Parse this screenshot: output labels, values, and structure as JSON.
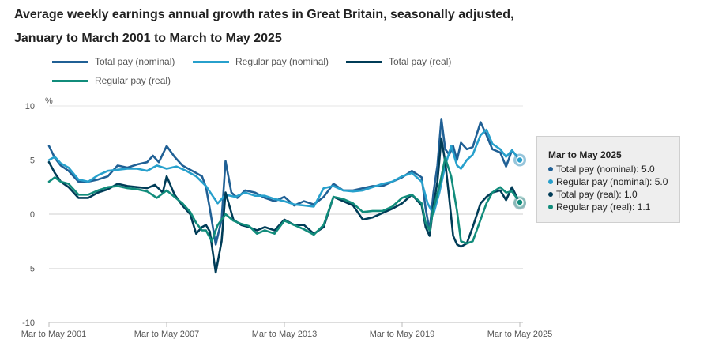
{
  "chart_data": {
    "type": "line",
    "title": "Average weekly earnings annual growth rates in Great Britain, seasonally adjusted, January to March 2001 to March to May 2025",
    "ylabel": "%",
    "xlabel": "",
    "ylim": [
      -10,
      10
    ],
    "yticks": [
      "10",
      "5",
      "0",
      "-5",
      "-10"
    ],
    "ytick_values": [
      10,
      5,
      0,
      -5,
      -10
    ],
    "x_range": [
      2001.0,
      2025.0
    ],
    "xtick_labels": [
      "Mar to May 2001",
      "Mar to May 2007",
      "Mar to May 2013",
      "Mar to May 2019",
      "Mar to May 2025"
    ],
    "xtick_values": [
      2001.0,
      2007.0,
      2013.0,
      2019.0,
      2025.0
    ],
    "legend_position": "top",
    "series": [
      {
        "name": "Total pay (nominal)",
        "color": "#206095",
        "x": [
          2001.0,
          2001.3,
          2001.6,
          2002.0,
          2002.5,
          2003.0,
          2003.5,
          2004.0,
          2004.5,
          2005.0,
          2005.5,
          2006.0,
          2006.3,
          2006.6,
          2007.0,
          2007.4,
          2007.8,
          2008.1,
          2008.5,
          2008.8,
          2009.0,
          2009.2,
          2009.5,
          2009.8,
          2010.0,
          2010.3,
          2010.6,
          2011.0,
          2011.5,
          2012.0,
          2012.5,
          2013.0,
          2013.5,
          2014.0,
          2014.5,
          2015.0,
          2015.5,
          2016.0,
          2016.5,
          2017.0,
          2017.5,
          2018.0,
          2018.5,
          2019.0,
          2019.5,
          2020.0,
          2020.2,
          2020.4,
          2020.6,
          2020.8,
          2021.0,
          2021.2,
          2021.4,
          2021.6,
          2021.8,
          2022.0,
          2022.3,
          2022.6,
          2023.0,
          2023.3,
          2023.6,
          2024.0,
          2024.3,
          2024.6,
          2025.0
        ],
        "y": [
          6.3,
          5.2,
          4.5,
          4.0,
          3.0,
          3.0,
          3.2,
          3.5,
          4.5,
          4.3,
          4.6,
          4.8,
          5.4,
          4.8,
          6.3,
          5.3,
          4.5,
          4.2,
          3.8,
          3.5,
          2.5,
          0.5,
          -2.8,
          -0.5,
          4.9,
          2.0,
          1.5,
          2.2,
          2.0,
          1.5,
          1.2,
          1.6,
          0.8,
          1.2,
          0.9,
          1.6,
          2.8,
          2.2,
          2.2,
          2.4,
          2.6,
          2.6,
          3.0,
          3.4,
          4.0,
          3.4,
          0.5,
          -1.5,
          2.0,
          4.5,
          8.8,
          6.0,
          5.5,
          6.3,
          5.0,
          6.6,
          6.0,
          6.2,
          8.5,
          7.3,
          6.0,
          5.7,
          4.4,
          5.9,
          5.0
        ]
      },
      {
        "name": "Regular pay (nominal)",
        "color": "#27A0CC",
        "x": [
          2001.0,
          2001.3,
          2001.6,
          2002.0,
          2002.5,
          2003.0,
          2003.5,
          2004.0,
          2004.5,
          2005.0,
          2005.5,
          2006.0,
          2006.5,
          2007.0,
          2007.5,
          2008.0,
          2008.5,
          2009.0,
          2009.3,
          2009.6,
          2010.0,
          2010.5,
          2011.0,
          2011.5,
          2012.0,
          2012.5,
          2013.0,
          2013.5,
          2014.0,
          2014.5,
          2015.0,
          2015.5,
          2016.0,
          2016.5,
          2017.0,
          2017.5,
          2018.0,
          2018.5,
          2019.0,
          2019.5,
          2020.0,
          2020.3,
          2020.6,
          2020.9,
          2021.2,
          2021.5,
          2021.8,
          2022.0,
          2022.3,
          2022.6,
          2023.0,
          2023.3,
          2023.6,
          2024.0,
          2024.3,
          2024.6,
          2025.0
        ],
        "y": [
          5.0,
          5.3,
          4.7,
          4.3,
          3.2,
          3.0,
          3.6,
          4.0,
          4.1,
          4.2,
          4.2,
          4.0,
          4.5,
          4.2,
          4.4,
          4.0,
          3.5,
          2.6,
          1.8,
          1.0,
          1.8,
          1.6,
          2.0,
          1.7,
          1.7,
          1.4,
          1.2,
          0.9,
          0.8,
          0.7,
          2.4,
          2.6,
          2.2,
          2.1,
          2.2,
          2.5,
          2.8,
          3.0,
          3.5,
          3.8,
          3.0,
          1.0,
          0.0,
          2.0,
          4.5,
          6.3,
          4.5,
          4.2,
          5.0,
          5.5,
          7.3,
          7.8,
          6.5,
          6.0,
          5.3,
          5.9,
          5.0
        ]
      },
      {
        "name": "Total pay (real)",
        "color": "#003C57",
        "x": [
          2001.0,
          2001.3,
          2001.6,
          2002.0,
          2002.5,
          2003.0,
          2003.5,
          2004.0,
          2004.5,
          2005.0,
          2005.5,
          2006.0,
          2006.4,
          2006.8,
          2007.0,
          2007.4,
          2007.8,
          2008.2,
          2008.5,
          2008.8,
          2009.0,
          2009.2,
          2009.5,
          2009.8,
          2010.0,
          2010.4,
          2010.8,
          2011.2,
          2011.6,
          2012.0,
          2012.5,
          2013.0,
          2013.5,
          2014.0,
          2014.5,
          2015.0,
          2015.5,
          2016.0,
          2016.5,
          2017.0,
          2017.5,
          2018.0,
          2018.5,
          2019.0,
          2019.5,
          2020.0,
          2020.2,
          2020.4,
          2020.6,
          2020.8,
          2021.0,
          2021.2,
          2021.4,
          2021.6,
          2021.8,
          2022.0,
          2022.3,
          2022.6,
          2023.0,
          2023.3,
          2023.6,
          2024.0,
          2024.3,
          2024.6,
          2025.0
        ],
        "y": [
          4.8,
          3.8,
          3.0,
          2.5,
          1.5,
          1.5,
          2.0,
          2.3,
          2.8,
          2.6,
          2.5,
          2.4,
          2.7,
          2.0,
          3.5,
          1.8,
          0.8,
          0.0,
          -1.8,
          -1.2,
          -1.0,
          -1.6,
          -5.4,
          -2.5,
          2.0,
          -0.5,
          -1.0,
          -1.2,
          -1.5,
          -1.2,
          -1.5,
          -0.5,
          -1.0,
          -1.0,
          -1.8,
          -1.2,
          1.6,
          1.2,
          0.8,
          -0.5,
          -0.3,
          0.1,
          0.5,
          1.0,
          1.8,
          0.8,
          -1.2,
          -2.0,
          0.8,
          3.0,
          7.0,
          4.8,
          1.5,
          -2.0,
          -2.8,
          -3.0,
          -2.7,
          -1.2,
          1.0,
          1.6,
          2.0,
          2.2,
          1.3,
          2.5,
          1.0
        ]
      },
      {
        "name": "Regular pay (real)",
        "color": "#118C7B",
        "x": [
          2001.0,
          2001.3,
          2001.6,
          2002.0,
          2002.5,
          2003.0,
          2003.5,
          2004.0,
          2004.5,
          2005.0,
          2005.5,
          2006.0,
          2006.5,
          2007.0,
          2007.4,
          2007.8,
          2008.2,
          2008.5,
          2008.8,
          2009.0,
          2009.3,
          2009.6,
          2010.0,
          2010.4,
          2010.8,
          2011.2,
          2011.6,
          2012.0,
          2012.5,
          2013.0,
          2013.5,
          2014.0,
          2014.5,
          2015.0,
          2015.5,
          2016.0,
          2016.5,
          2017.0,
          2017.5,
          2018.0,
          2018.5,
          2019.0,
          2019.5,
          2020.0,
          2020.2,
          2020.4,
          2020.6,
          2020.9,
          2021.2,
          2021.5,
          2021.8,
          2022.0,
          2022.3,
          2022.6,
          2023.0,
          2023.3,
          2023.6,
          2024.0,
          2024.3,
          2024.6,
          2025.0
        ],
        "y": [
          3.0,
          3.4,
          3.0,
          2.8,
          1.8,
          1.8,
          2.2,
          2.5,
          2.6,
          2.4,
          2.3,
          2.1,
          1.5,
          2.2,
          1.6,
          1.0,
          0.2,
          -0.8,
          -1.5,
          -1.5,
          -2.5,
          -1.0,
          0.0,
          -0.6,
          -0.9,
          -1.1,
          -1.8,
          -1.5,
          -1.8,
          -0.6,
          -1.0,
          -1.4,
          -1.9,
          -1.0,
          1.6,
          1.4,
          1.0,
          0.2,
          0.3,
          0.3,
          0.7,
          1.5,
          1.8,
          1.0,
          -0.8,
          -1.5,
          0.5,
          2.6,
          5.2,
          3.5,
          0.3,
          -2.5,
          -2.7,
          -2.5,
          -0.5,
          1.0,
          2.0,
          2.5,
          2.0,
          2.1,
          1.1
        ]
      }
    ],
    "tooltip": {
      "title": "Mar to May 2025",
      "rows": [
        {
          "label": "Total pay (nominal): 5.0",
          "color": "#206095"
        },
        {
          "label": "Regular pay (nominal): 5.0",
          "color": "#27A0CC"
        },
        {
          "label": "Total pay (real): 1.0",
          "color": "#003C57"
        },
        {
          "label": "Regular pay (real): 1.1",
          "color": "#118C7B"
        }
      ],
      "x": 2025.0
    }
  }
}
